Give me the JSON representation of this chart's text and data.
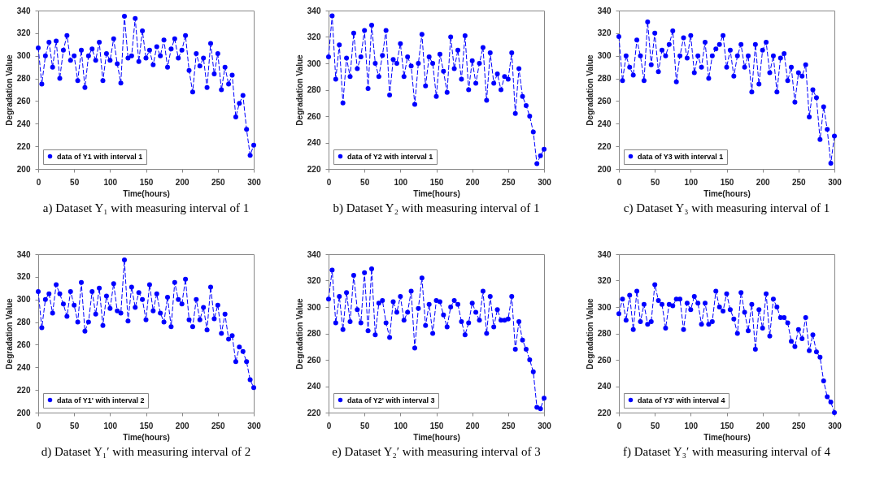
{
  "chart_data": [
    {
      "type": "line",
      "xlabel": "Time(hours)",
      "ylabel": "Degradation Value",
      "annotations": [
        "a) Dataset Y₁ with measuring interval of 1"
      ],
      "xlim": [
        0,
        300
      ],
      "xticks": [
        0,
        50,
        100,
        150,
        200,
        250,
        300
      ],
      "ylim": [
        200,
        340
      ],
      "yticks": [
        200,
        220,
        240,
        260,
        280,
        300,
        320,
        340
      ],
      "grid": false,
      "legend": "bottom left",
      "marker": "circle",
      "line_style": "dashed",
      "x": [
        0,
        5,
        10,
        15,
        20,
        25,
        30,
        35,
        40,
        45,
        50,
        55,
        60,
        65,
        70,
        75,
        80,
        85,
        90,
        95,
        100,
        105,
        110,
        115,
        120,
        125,
        130,
        135,
        140,
        145,
        150,
        155,
        160,
        165,
        170,
        175,
        180,
        185,
        190,
        195,
        200,
        205,
        210,
        215,
        220,
        225,
        230,
        235,
        240,
        245,
        250,
        255,
        260,
        265,
        270,
        275,
        280,
        285,
        290,
        295,
        300
      ],
      "series": [
        {
          "name": "data of Y1 with interval 1",
          "color": "#0000ff",
          "values": [
            307,
            275,
            300,
            312,
            290,
            313,
            280,
            305,
            318,
            296,
            300,
            278,
            305,
            272,
            300,
            306,
            296,
            312,
            278,
            302,
            296,
            315,
            293,
            276,
            335,
            298,
            300,
            333,
            295,
            322,
            298,
            305,
            292,
            308,
            300,
            314,
            290,
            306,
            315,
            298,
            305,
            318,
            287,
            268,
            302,
            291,
            298,
            272,
            311,
            284,
            302,
            270,
            290,
            275,
            283,
            246,
            258,
            265,
            235,
            212,
            221
          ]
        }
      ]
    },
    {
      "type": "line",
      "xlabel": "Time(hours)",
      "ylabel": "Degradation Value",
      "annotations": [
        "b) Dataset Y₂ with measuring interval of 1"
      ],
      "xlim": [
        0,
        300
      ],
      "xticks": [
        0,
        50,
        100,
        150,
        200,
        250,
        300
      ],
      "ylim": [
        220,
        340
      ],
      "yticks": [
        220,
        240,
        260,
        280,
        300,
        320,
        340
      ],
      "grid": false,
      "legend": "bottom left",
      "marker": "circle",
      "line_style": "dashed",
      "x": [
        0,
        5,
        10,
        15,
        20,
        25,
        30,
        35,
        40,
        45,
        50,
        55,
        60,
        65,
        70,
        75,
        80,
        85,
        90,
        95,
        100,
        105,
        110,
        115,
        120,
        125,
        130,
        135,
        140,
        145,
        150,
        155,
        160,
        165,
        170,
        175,
        180,
        185,
        190,
        195,
        200,
        205,
        210,
        215,
        220,
        225,
        230,
        235,
        240,
        245,
        250,
        255,
        260,
        265,
        270,
        275,
        280,
        285,
        290,
        295,
        300
      ],
      "series": [
        {
          "name": "data of Y2 with interval 1",
          "color": "#0000ff",
          "values": [
            305,
            336,
            288,
            314,
            270,
            304,
            290,
            323,
            296,
            305,
            325,
            281,
            329,
            300,
            290,
            306,
            325,
            276,
            303,
            300,
            315,
            290,
            305,
            298,
            269,
            300,
            322,
            283,
            305,
            300,
            275,
            307,
            294,
            278,
            320,
            296,
            310,
            288,
            321,
            280,
            302,
            285,
            300,
            312,
            272,
            308,
            285,
            292,
            280,
            290,
            288,
            308,
            262,
            296,
            275,
            268,
            260,
            248,
            224,
            230,
            235
          ]
        }
      ]
    },
    {
      "type": "line",
      "xlabel": "Time(hours)",
      "ylabel": "Degradation Value",
      "annotations": [
        "c) Dataset Y₃ with measuring interval of 1"
      ],
      "xlim": [
        0,
        300
      ],
      "xticks": [
        0,
        50,
        100,
        150,
        200,
        250,
        300
      ],
      "ylim": [
        200,
        340
      ],
      "yticks": [
        200,
        220,
        240,
        260,
        280,
        300,
        320,
        340
      ],
      "grid": false,
      "legend": "bottom left",
      "marker": "circle",
      "line_style": "dashed",
      "x": [
        0,
        5,
        10,
        15,
        20,
        25,
        30,
        35,
        40,
        45,
        50,
        55,
        60,
        65,
        70,
        75,
        80,
        85,
        90,
        95,
        100,
        105,
        110,
        115,
        120,
        125,
        130,
        135,
        140,
        145,
        150,
        155,
        160,
        165,
        170,
        175,
        180,
        185,
        190,
        195,
        200,
        205,
        210,
        215,
        220,
        225,
        230,
        235,
        240,
        245,
        250,
        255,
        260,
        265,
        270,
        275,
        280,
        285,
        290,
        295,
        300
      ],
      "series": [
        {
          "name": "data of Y3 with interval 1",
          "color": "#0000ff",
          "values": [
            317,
            278,
            300,
            290,
            283,
            314,
            300,
            278,
            330,
            292,
            320,
            286,
            305,
            300,
            310,
            322,
            277,
            300,
            316,
            298,
            318,
            285,
            300,
            290,
            312,
            280,
            300,
            306,
            310,
            318,
            290,
            305,
            282,
            300,
            310,
            290,
            300,
            268,
            310,
            275,
            305,
            312,
            285,
            300,
            268,
            298,
            302,
            278,
            290,
            259,
            285,
            282,
            292,
            246,
            270,
            263,
            226,
            255,
            235,
            205,
            229
          ]
        }
      ]
    },
    {
      "type": "line",
      "xlabel": "Time(hours)",
      "ylabel": "Degradation Value",
      "annotations": [
        "d) Dataset Y₁′ with measuring interval of 2"
      ],
      "xlim": [
        0,
        300
      ],
      "xticks": [
        0,
        50,
        100,
        150,
        200,
        250,
        300
      ],
      "ylim": [
        200,
        340
      ],
      "yticks": [
        200,
        220,
        240,
        260,
        280,
        300,
        320,
        340
      ],
      "grid": false,
      "legend": "bottom left",
      "marker": "circle",
      "line_style": "dashed",
      "x": [
        0,
        5,
        10,
        15,
        20,
        25,
        30,
        35,
        40,
        45,
        50,
        55,
        60,
        65,
        70,
        75,
        80,
        85,
        90,
        95,
        100,
        105,
        110,
        115,
        120,
        125,
        130,
        135,
        140,
        145,
        150,
        155,
        160,
        165,
        170,
        175,
        180,
        185,
        190,
        195,
        200,
        205,
        210,
        215,
        220,
        225,
        230,
        235,
        240,
        245,
        250,
        255,
        260,
        265,
        270,
        275,
        280,
        285,
        290,
        295,
        300
      ],
      "series": [
        {
          "name": "data of Y1' with interval 2",
          "color": "#0000ff",
          "values": [
            307,
            275,
            300,
            305,
            288,
            313,
            305,
            296,
            285,
            307,
            295,
            280,
            315,
            272,
            280,
            307,
            287,
            310,
            277,
            303,
            292,
            314,
            290,
            288,
            335,
            281,
            311,
            293,
            306,
            300,
            282,
            313,
            290,
            305,
            288,
            280,
            302,
            276,
            315,
            300,
            296,
            318,
            282,
            276,
            300,
            282,
            293,
            273,
            311,
            283,
            295,
            270,
            287,
            265,
            268,
            245,
            258,
            254,
            245,
            229,
            222
          ]
        }
      ]
    },
    {
      "type": "line",
      "xlabel": "Time(hours)",
      "ylabel": "Degradation Value",
      "annotations": [
        "e) Dataset Y₂′ with measuring interval of 3"
      ],
      "xlim": [
        0,
        300
      ],
      "xticks": [
        0,
        50,
        100,
        150,
        200,
        250,
        300
      ],
      "ylim": [
        220,
        340
      ],
      "yticks": [
        220,
        240,
        260,
        280,
        300,
        320,
        340
      ],
      "grid": false,
      "legend": "bottom left",
      "marker": "circle",
      "line_style": "dashed",
      "x": [
        0,
        5,
        10,
        15,
        20,
        25,
        30,
        35,
        40,
        45,
        50,
        55,
        60,
        65,
        70,
        75,
        80,
        85,
        90,
        95,
        100,
        105,
        110,
        115,
        120,
        125,
        130,
        135,
        140,
        145,
        150,
        155,
        160,
        165,
        170,
        175,
        180,
        185,
        190,
        195,
        200,
        205,
        210,
        215,
        220,
        225,
        230,
        235,
        240,
        245,
        250,
        255,
        260,
        265,
        270,
        275,
        280,
        285,
        290,
        295,
        300
      ],
      "series": [
        {
          "name": "data of Y2' with interval 3",
          "color": "#0000ff",
          "values": [
            306,
            328,
            288,
            308,
            283,
            311,
            289,
            324,
            298,
            288,
            326,
            282,
            329,
            279,
            303,
            305,
            288,
            277,
            304,
            296,
            308,
            290,
            296,
            312,
            269,
            299,
            322,
            286,
            302,
            280,
            305,
            304,
            294,
            285,
            300,
            305,
            302,
            289,
            279,
            288,
            303,
            296,
            290,
            312,
            280,
            308,
            285,
            298,
            290,
            290,
            291,
            308,
            268,
            289,
            275,
            268,
            260,
            251,
            224,
            223,
            231
          ]
        }
      ]
    },
    {
      "type": "line",
      "xlabel": "Time(hours)",
      "ylabel": "Degradation Value",
      "annotations": [
        "f) Dataset Y₃′ with measuring interval of 4"
      ],
      "xlim": [
        0,
        300
      ],
      "xticks": [
        0,
        50,
        100,
        150,
        200,
        250,
        300
      ],
      "ylim": [
        220,
        340
      ],
      "yticks": [
        220,
        240,
        260,
        280,
        300,
        320,
        340
      ],
      "grid": false,
      "legend": "bottom left",
      "marker": "circle",
      "line_style": "dashed",
      "x": [
        0,
        5,
        10,
        15,
        20,
        25,
        30,
        35,
        40,
        45,
        50,
        55,
        60,
        65,
        70,
        75,
        80,
        85,
        90,
        95,
        100,
        105,
        110,
        115,
        120,
        125,
        130,
        135,
        140,
        145,
        150,
        155,
        160,
        165,
        170,
        175,
        180,
        185,
        190,
        195,
        200,
        205,
        210,
        215,
        220,
        225,
        230,
        235,
        240,
        245,
        250,
        255,
        260,
        265,
        270,
        275,
        280,
        285,
        290,
        295,
        300
      ],
      "series": [
        {
          "name": "data of Y3' with interval 4",
          "color": "#0000ff",
          "values": [
            295,
            306,
            290,
            309,
            283,
            312,
            289,
            302,
            287,
            289,
            317,
            305,
            302,
            284,
            302,
            301,
            306,
            306,
            283,
            303,
            298,
            308,
            303,
            287,
            303,
            287,
            289,
            312,
            300,
            297,
            310,
            298,
            291,
            280,
            311,
            296,
            282,
            302,
            268,
            298,
            284,
            310,
            278,
            306,
            300,
            292,
            292,
            288,
            274,
            270,
            283,
            276,
            292,
            267,
            279,
            266,
            262,
            244,
            232,
            228,
            220
          ]
        }
      ]
    }
  ]
}
